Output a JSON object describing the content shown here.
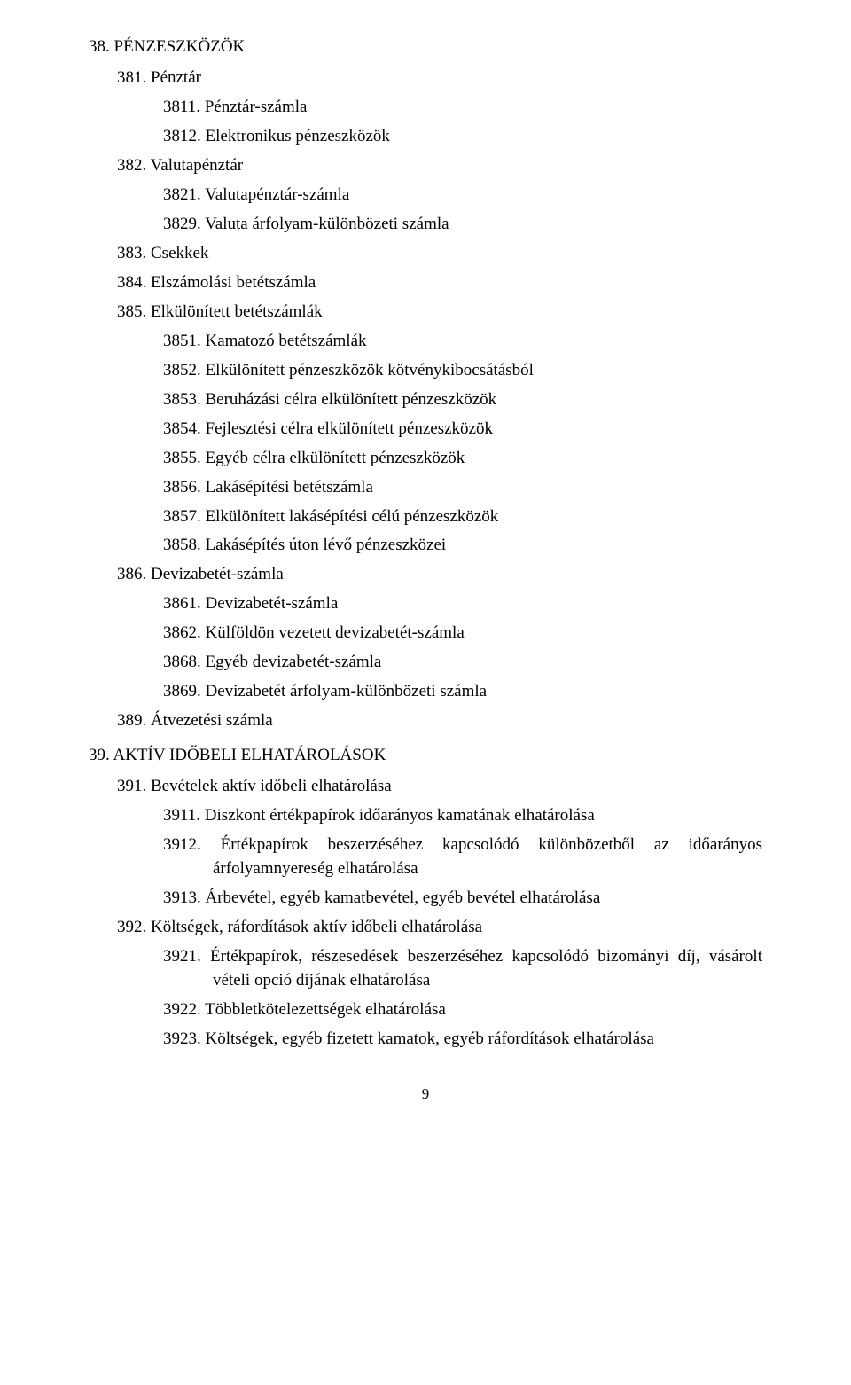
{
  "typography": {
    "font_family": "Times New Roman",
    "base_fontsize_pt": 14,
    "text_color": "#000000",
    "background_color": "#ffffff"
  },
  "page_number": "9",
  "g38": {
    "title": "38. PÉNZESZKÖZÖK",
    "g381": {
      "title": "381. Pénztár",
      "i3811": "3811. Pénztár-számla",
      "i3812": "3812. Elektronikus pénzeszközök"
    },
    "g382": {
      "title": "382. Valutapénztár",
      "i3821": "3821. Valutapénztár-számla",
      "i3829": "3829. Valuta árfolyam-különbözeti számla"
    },
    "g383": {
      "title": "383. Csekkek"
    },
    "g384": {
      "title": "384. Elszámolási betétszámla"
    },
    "g385": {
      "title": "385. Elkülönített betétszámlák",
      "i3851": "3851. Kamatozó betétszámlák",
      "i3852": "3852. Elkülönített pénzeszközök kötvénykibocsátásból",
      "i3853": "3853. Beruházási célra elkülönített pénzeszközök",
      "i3854": "3854. Fejlesztési célra elkülönített pénzeszközök",
      "i3855": "3855. Egyéb célra elkülönített pénzeszközök",
      "i3856": "3856. Lakásépítési betétszámla",
      "i3857": "3857. Elkülönített lakásépítési célú pénzeszközök",
      "i3858": "3858. Lakásépítés úton lévő pénzeszközei"
    },
    "g386": {
      "title": "386. Devizabetét-számla",
      "i3861": "3861. Devizabetét-számla",
      "i3862": "3862. Külföldön vezetett devizabetét-számla",
      "i3868": "3868. Egyéb devizabetét-számla",
      "i3869": "3869. Devizabetét árfolyam-különbözeti számla"
    },
    "g389": {
      "title": "389. Átvezetési számla"
    }
  },
  "g39": {
    "title": "39. AKTÍV IDŐBELI ELHATÁROLÁSOK",
    "g391": {
      "title": "391. Bevételek aktív időbeli elhatárolása",
      "i3911": "3911. Diszkont értékpapírok időarányos kamatának elhatárolása",
      "i3912": "3912. Értékpapírok beszerzéséhez kapcsolódó különbözetből az időarányos árfolyamnyereség elhatárolása",
      "i3913": "3913. Árbevétel, egyéb kamatbevétel, egyéb bevétel elhatárolása"
    },
    "g392": {
      "title": "392. Költségek, ráfordítások aktív időbeli elhatárolása",
      "i3921": "3921. Értékpapírok, részesedések beszerzéséhez kapcsolódó bizományi díj, vásárolt vételi opció díjának elhatárolása",
      "i3922": "3922. Többletkötelezettségek elhatárolása",
      "i3923": "3923. Költségek, egyéb fizetett kamatok, egyéb ráfordítások elhatárolása"
    }
  }
}
